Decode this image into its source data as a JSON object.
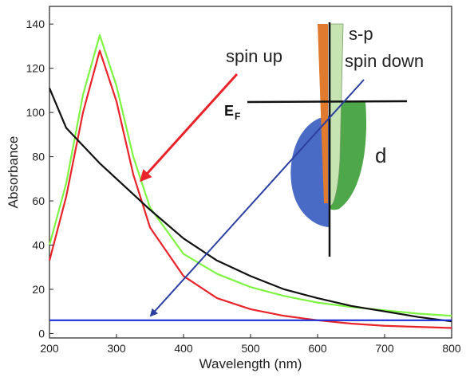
{
  "chart_data": {
    "type": "line",
    "x_label": "Wavelength (nm)",
    "y_label": "Absorbance",
    "x": [
      200,
      225,
      250,
      275,
      300,
      325,
      350,
      400,
      450,
      500,
      550,
      600,
      650,
      700,
      750,
      800
    ],
    "series": [
      {
        "color": "#7ef542",
        "values": [
          40,
          68,
          108,
          135,
          112,
          80,
          57,
          36,
          27,
          21,
          17,
          14,
          12,
          10.5,
          9,
          8
        ]
      },
      {
        "color": "#e8242a",
        "values": [
          33,
          62,
          100,
          128,
          105,
          72,
          48,
          26,
          16,
          11,
          8,
          6,
          4.5,
          3.5,
          3,
          2.5
        ]
      },
      {
        "color": "#111111",
        "values": [
          111,
          93,
          85,
          77,
          70,
          63,
          56,
          43,
          33,
          26,
          20,
          16,
          12.5,
          10,
          7.5,
          5.5
        ]
      },
      {
        "color": "#1a2fd8",
        "values": [
          6,
          6,
          6,
          6,
          6,
          6,
          6,
          6,
          6,
          6,
          6,
          6,
          6,
          6,
          6,
          6
        ]
      }
    ],
    "xlim": [
      200,
      800
    ],
    "xticks": [
      200,
      300,
      400,
      500,
      600,
      700,
      800
    ],
    "ylim": [
      -2,
      148
    ],
    "yticks": [
      0,
      20,
      40,
      60,
      80,
      100,
      120,
      140
    ],
    "annotations": {
      "spin_up": "spin up",
      "spin_down": "spin down",
      "sp": "s-p",
      "d": "d",
      "fermi": "E",
      "fermi_sub": "F"
    }
  }
}
